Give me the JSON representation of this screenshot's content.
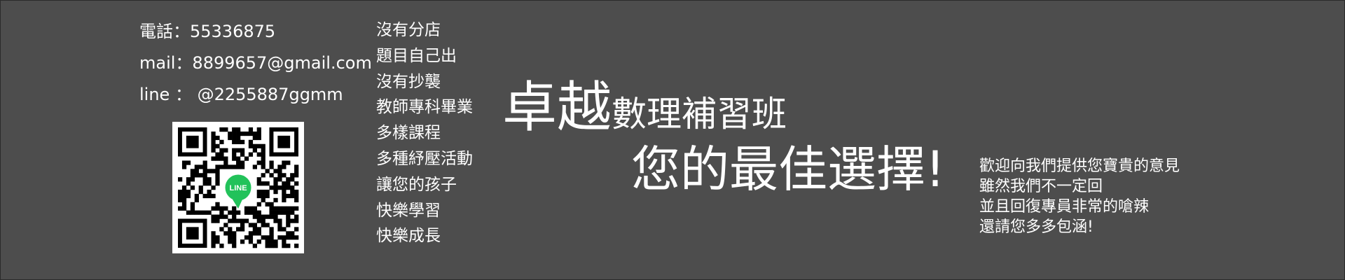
{
  "contact": {
    "phone": "電話：55336875",
    "mail": "mail：8899657@gmail.com",
    "line": "line ： @2255887ggmm"
  },
  "qr_code": {
    "badge_text": "LINE",
    "badge_color": "#22c25a"
  },
  "features": [
    "沒有分店",
    "題目自己出",
    "沒有抄襲",
    "教師專科畢業",
    "多樣課程",
    "多種紓壓活動",
    "讓您的孩子",
    "快樂學習",
    "快樂成長"
  ],
  "title": {
    "brand": "卓越",
    "name": "數理補習班"
  },
  "slogan": "您的最佳選擇!",
  "feedback": [
    "歡迎向我們提供您寶貴的意見",
    "雖然我們不一定回",
    "並且回復專員非常的嗆辣",
    "還請您多多包涵!"
  ],
  "colors": {
    "background": "#4d4d4d",
    "text": "#ffffff"
  }
}
